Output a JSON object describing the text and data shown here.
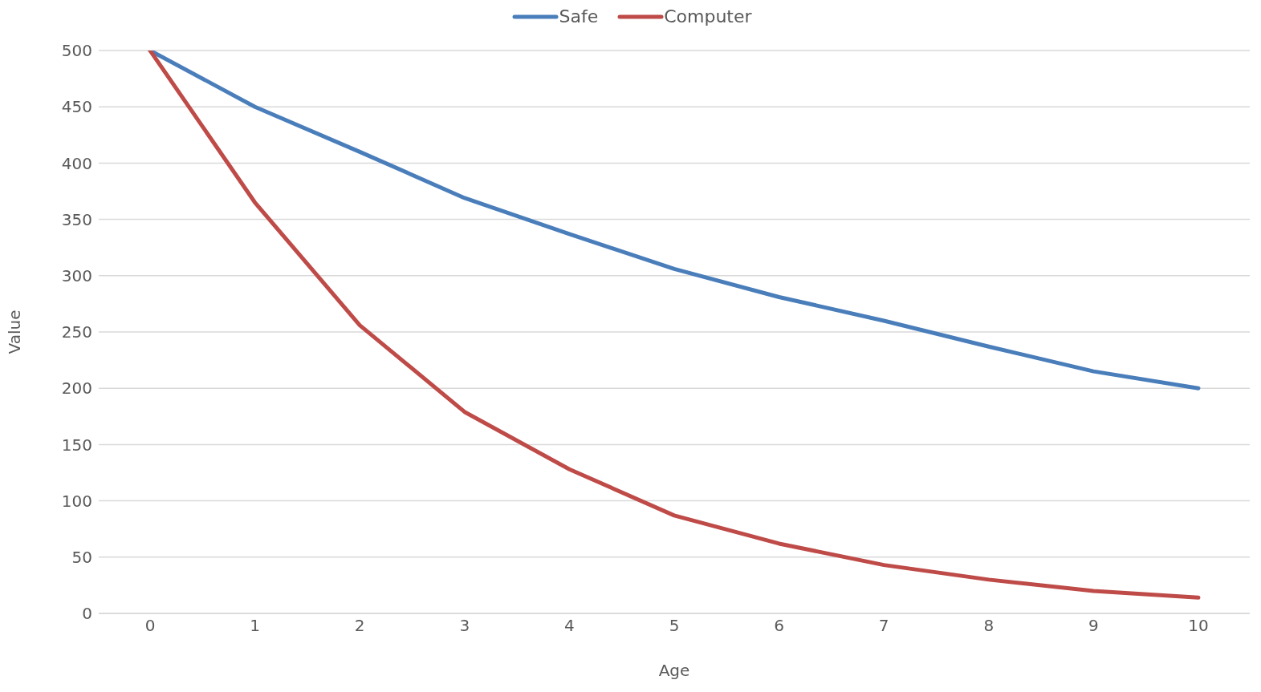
{
  "chart_data": {
    "type": "line",
    "xlabel": "Age",
    "ylabel": "Value",
    "categories": [
      "0",
      "1",
      "2",
      "3",
      "4",
      "5",
      "6",
      "7",
      "8",
      "9",
      "10"
    ],
    "series": [
      {
        "name": "Safe",
        "color": "#4a7ebb",
        "values": [
          500,
          450,
          410,
          369,
          337,
          306,
          281,
          260,
          237,
          215,
          200
        ]
      },
      {
        "name": "Computer",
        "color": "#be4b48",
        "values": [
          500,
          365,
          256,
          179,
          128,
          87,
          62,
          43,
          30,
          20,
          14
        ]
      }
    ],
    "ylim": [
      0,
      500
    ],
    "yticks": [
      0,
      50,
      100,
      150,
      200,
      250,
      300,
      350,
      400,
      450,
      500
    ],
    "grid": "y",
    "legend": "top",
    "marker": "none",
    "line_style": "solid"
  }
}
